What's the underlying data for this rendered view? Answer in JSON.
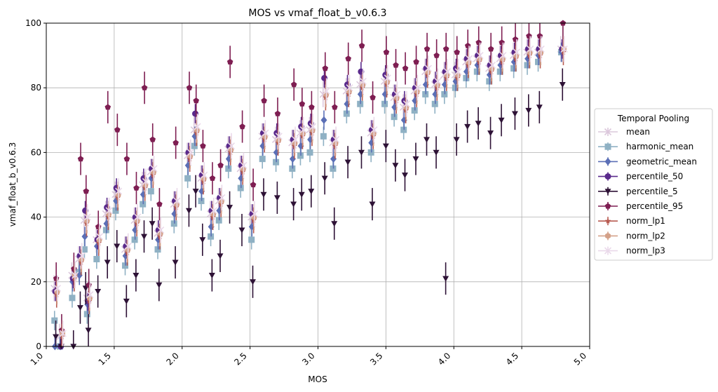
{
  "chart_data": {
    "type": "scatter",
    "title": "MOS vs vmaf_float_b_v0.6.3",
    "xlabel": "MOS",
    "ylabel": "vmaf_float_b_v0.6.3",
    "xlim": [
      1.0,
      5.0
    ],
    "ylim": [
      0,
      100
    ],
    "x_ticks": [
      "1.0",
      "1.5",
      "2.0",
      "2.5",
      "3.0",
      "3.5",
      "4.0",
      "4.5",
      "5.0"
    ],
    "y_ticks": [
      "0",
      "20",
      "40",
      "60",
      "80",
      "100"
    ],
    "grid": true,
    "error_bars": true,
    "legend": {
      "title": "Temporal Pooling",
      "placement": "center-right outside",
      "entries": [
        "mean",
        "harmonic_mean",
        "geometric_mean",
        "percentile_50",
        "percentile_5",
        "percentile_95",
        "norm_lp1",
        "norm_lp2",
        "norm_lp3"
      ]
    },
    "x": [
      1.07,
      1.11,
      1.2,
      1.25,
      1.29,
      1.31,
      1.38,
      1.45,
      1.52,
      1.59,
      1.66,
      1.72,
      1.78,
      1.83,
      1.95,
      2.05,
      2.1,
      2.15,
      2.22,
      2.28,
      2.35,
      2.44,
      2.52,
      2.6,
      2.7,
      2.82,
      2.88,
      2.95,
      3.05,
      3.12,
      3.22,
      3.32,
      3.4,
      3.5,
      3.57,
      3.64,
      3.72,
      3.8,
      3.87,
      3.94,
      4.02,
      4.1,
      4.18,
      4.27,
      4.35,
      4.45,
      4.55,
      4.63,
      4.8
    ],
    "series": [
      {
        "name": "mean",
        "color": "#dcc8dc",
        "marker": "x",
        "yerr": 4,
        "values": [
          18,
          3,
          22,
          27,
          39,
          15,
          33,
          41,
          47,
          30,
          39,
          50,
          54,
          35,
          44,
          59,
          67,
          52,
          41,
          45,
          61,
          55,
          40,
          65,
          64,
          63,
          66,
          67,
          78,
          63,
          79,
          81,
          66,
          82,
          77,
          74,
          79,
          85,
          81,
          84,
          84,
          88,
          89,
          86,
          89,
          90,
          91,
          91,
          92
        ]
      },
      {
        "name": "harmonic_mean",
        "color": "#8fb1c4",
        "marker": "s",
        "yerr": 3,
        "values": [
          8,
          0,
          15,
          23,
          30,
          10,
          27,
          36,
          42,
          25,
          33,
          44,
          48,
          30,
          38,
          52,
          62,
          45,
          34,
          39,
          55,
          49,
          33,
          58,
          57,
          55,
          59,
          60,
          65,
          55,
          72,
          75,
          60,
          75,
          71,
          67,
          73,
          78,
          75,
          78,
          80,
          83,
          85,
          82,
          85,
          86,
          87,
          88,
          91
        ]
      },
      {
        "name": "geometric_mean",
        "color": "#5b6fb6",
        "marker": "D",
        "yerr": 3,
        "values": [
          0,
          0,
          20,
          22,
          34,
          13,
          31,
          38,
          45,
          28,
          36,
          47,
          52,
          33,
          41,
          56,
          65,
          48,
          37,
          42,
          58,
          52,
          37,
          62,
          60,
          58,
          62,
          64,
          70,
          58,
          75,
          78,
          63,
          78,
          74,
          70,
          76,
          81,
          78,
          81,
          82,
          85,
          87,
          84,
          87,
          88,
          89,
          90,
          91
        ]
      },
      {
        "name": "percentile_50",
        "color": "#5a2a8c",
        "marker": "o",
        "yerr": 3,
        "values": [
          17,
          0,
          21,
          28,
          42,
          14,
          33,
          43,
          49,
          31,
          40,
          52,
          55,
          36,
          45,
          60,
          72,
          53,
          42,
          46,
          62,
          56,
          41,
          66,
          66,
          64,
          68,
          69,
          83,
          64,
          81,
          85,
          67,
          84,
          78,
          76,
          80,
          86,
          82,
          85,
          86,
          89,
          90,
          87,
          90,
          91,
          92,
          92,
          92
        ]
      },
      {
        "name": "percentile_5",
        "color": "#2e1236",
        "marker": "v",
        "yerr": 5,
        "values": [
          3,
          0,
          0,
          12,
          18,
          5,
          17,
          26,
          31,
          14,
          22,
          34,
          38,
          19,
          26,
          42,
          48,
          33,
          22,
          28,
          43,
          36,
          20,
          47,
          46,
          44,
          47,
          48,
          52,
          38,
          57,
          60,
          44,
          62,
          56,
          53,
          58,
          64,
          60,
          21,
          64,
          68,
          69,
          66,
          70,
          72,
          73,
          74,
          81
        ]
      },
      {
        "name": "percentile_95",
        "color": "#7e1e52",
        "marker": "p",
        "yerr": 5,
        "values": [
          21,
          5,
          24,
          58,
          48,
          19,
          37,
          74,
          67,
          58,
          49,
          80,
          64,
          44,
          63,
          80,
          76,
          62,
          52,
          56,
          88,
          68,
          50,
          76,
          72,
          81,
          75,
          74,
          86,
          74,
          89,
          93,
          77,
          91,
          87,
          86,
          88,
          92,
          90,
          92,
          91,
          93,
          94,
          92,
          94,
          95,
          96,
          96,
          100
        ]
      },
      {
        "name": "norm_lp1",
        "color": "#b85a50",
        "marker": "*",
        "yerr": 4,
        "values": [
          16,
          3,
          21,
          26,
          38,
          14,
          32,
          40,
          46,
          29,
          38,
          49,
          53,
          34,
          43,
          58,
          66,
          51,
          40,
          44,
          60,
          54,
          39,
          64,
          63,
          62,
          65,
          66,
          77,
          62,
          78,
          80,
          65,
          81,
          76,
          73,
          78,
          84,
          80,
          83,
          83,
          87,
          88,
          85,
          88,
          89,
          90,
          90,
          91
        ]
      },
      {
        "name": "norm_lp2",
        "color": "#d4a189",
        "marker": "h",
        "yerr": 4,
        "values": [
          17,
          4,
          22,
          27,
          39,
          15,
          33,
          41,
          47,
          30,
          39,
          50,
          54,
          35,
          44,
          59,
          67,
          52,
          41,
          45,
          61,
          55,
          40,
          65,
          64,
          63,
          66,
          67,
          78,
          63,
          79,
          81,
          66,
          82,
          77,
          74,
          79,
          85,
          81,
          84,
          84,
          88,
          89,
          86,
          89,
          90,
          91,
          91,
          92
        ]
      },
      {
        "name": "norm_lp3",
        "color": "#ead9ea",
        "marker": "x",
        "yerr": 4,
        "values": [
          18,
          4,
          22,
          28,
          40,
          16,
          34,
          42,
          48,
          31,
          40,
          51,
          55,
          36,
          45,
          60,
          68,
          53,
          42,
          46,
          62,
          56,
          41,
          66,
          65,
          64,
          67,
          68,
          79,
          64,
          80,
          82,
          67,
          83,
          78,
          75,
          80,
          86,
          82,
          85,
          85,
          89,
          90,
          87,
          90,
          91,
          92,
          92,
          92
        ]
      }
    ]
  }
}
